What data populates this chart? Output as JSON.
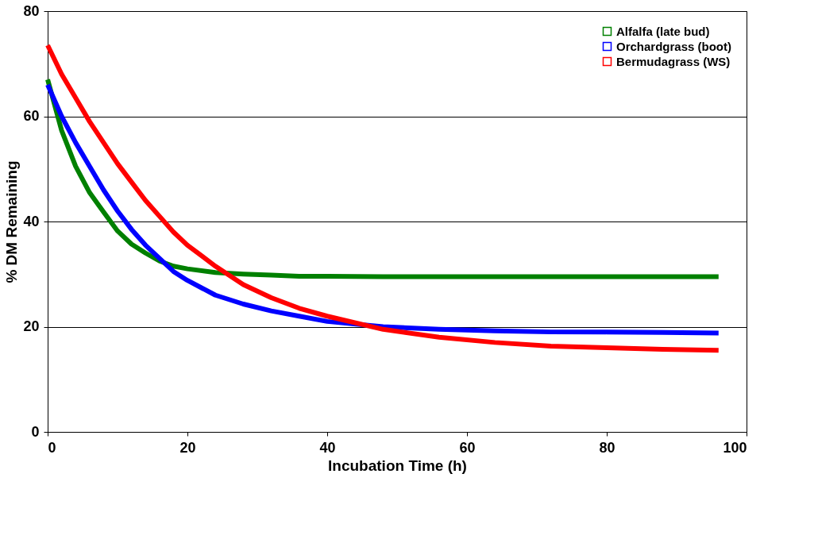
{
  "chart_data": {
    "type": "line",
    "xlabel": "Incubation Time (h)",
    "ylabel": "% DM Remaining",
    "x": [
      0,
      2,
      4,
      6,
      8,
      10,
      12,
      14,
      16,
      18,
      20,
      24,
      28,
      32,
      36,
      40,
      48,
      56,
      64,
      72,
      80,
      88,
      96
    ],
    "series": [
      {
        "name": "Alfalfa (late bud)",
        "color": "#008000",
        "values": [
          67,
          57.3,
          50.5,
          45.5,
          41.8,
          38.2,
          35.7,
          34,
          32.5,
          31.5,
          31,
          30.3,
          30,
          29.8,
          29.6,
          29.6,
          29.5,
          29.5,
          29.5,
          29.5,
          29.5,
          29.5,
          29.5
        ]
      },
      {
        "name": "Orchardgrass (boot)",
        "color": "#0000ff",
        "values": [
          66,
          60,
          55,
          50.5,
          46,
          42,
          38.5,
          35.5,
          33,
          30.5,
          28.8,
          26,
          24.3,
          23,
          22,
          21,
          20,
          19.5,
          19.2,
          19,
          19,
          18.9,
          18.8
        ]
      },
      {
        "name": "Bermudagrass (WS)",
        "color": "#ff0000",
        "values": [
          73.5,
          68,
          63.5,
          59,
          55,
          51,
          47.5,
          44,
          41,
          38,
          35.5,
          31.5,
          28,
          25.5,
          23.5,
          22,
          19.5,
          18,
          17,
          16.3,
          16,
          15.7,
          15.5
        ]
      }
    ],
    "xlim": [
      0,
      100
    ],
    "xticks": [
      0,
      20,
      40,
      60,
      80,
      100
    ],
    "ylim": [
      0,
      80
    ],
    "yticks": [
      0,
      20,
      40,
      60,
      80
    ],
    "grid": "y",
    "legend": "top right",
    "marker": "none",
    "line_style": "solid"
  }
}
